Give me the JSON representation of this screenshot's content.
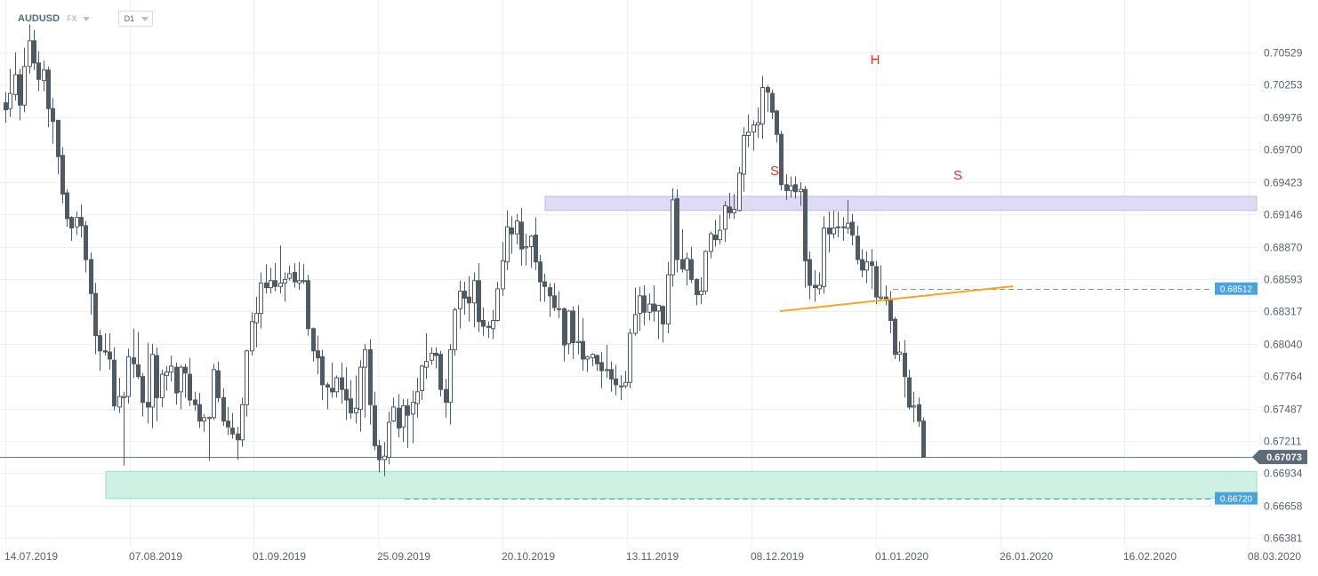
{
  "header": {
    "symbol": "AUDUSD",
    "market": "FX",
    "timeframe": "D1"
  },
  "chart_data": {
    "type": "candlestick",
    "symbol": "AUDUSD",
    "timeframe": "D1",
    "y_ticks": [
      "0.70529",
      "0.70253",
      "0.69976",
      "0.69700",
      "0.69423",
      "0.69146",
      "0.68870",
      "0.68593",
      "0.68317",
      "0.68040",
      "0.67764",
      "0.67487",
      "0.67211",
      "0.66934",
      "0.66658",
      "0.66381"
    ],
    "x_ticks": [
      "14.07.2019",
      "07.08.2019",
      "01.09.2019",
      "25.09.2019",
      "20.10.2019",
      "13.11.2019",
      "08.12.2019",
      "01.01.2020",
      "26.01.2020",
      "16.02.2020",
      "08.03.2020"
    ],
    "ylim": [
      0.6636,
      0.7072
    ],
    "current_price": {
      "label": "0.67073",
      "value": 0.67073
    },
    "price_labels": [
      {
        "label": "0.68512",
        "value": 0.68512
      },
      {
        "label": "0.66720",
        "value": 0.6672
      }
    ],
    "pattern": {
      "name": "head-and-shoulders",
      "labels": [
        "S",
        "H",
        "S"
      ]
    },
    "zones": [
      {
        "name": "resistance",
        "low": 0.6918,
        "high": 0.693,
        "color": "#dcd8f4"
      },
      {
        "name": "support",
        "low": 0.6672,
        "high": 0.6695,
        "color": "#c9f0e2"
      }
    ],
    "colors": {
      "bull": "#ffffff",
      "bear": "#4e5b65",
      "wick": "#4e5b65",
      "neckline": "#f5a623",
      "label": "#e03131",
      "price_tag": "#4aa3df",
      "current_tag": "#5d6b78"
    },
    "candles": [
      [
        0.701,
        0.7004,
        0.7019,
        0.6993
      ],
      [
        0.7005,
        0.7018,
        0.7039,
        0.6998
      ],
      [
        0.7017,
        0.7034,
        0.7053,
        0.7012
      ],
      [
        0.7034,
        0.7008,
        0.7039,
        0.6995
      ],
      [
        0.7008,
        0.7041,
        0.7057,
        0.7002
      ],
      [
        0.7041,
        0.7063,
        0.7077,
        0.7035
      ],
      [
        0.7063,
        0.7044,
        0.7072,
        0.7038
      ],
      [
        0.7044,
        0.703,
        0.7054,
        0.702
      ],
      [
        0.7029,
        0.7038,
        0.7046,
        0.702
      ],
      [
        0.7038,
        0.7005,
        0.7041,
        0.6989
      ],
      [
        0.7005,
        0.6994,
        0.7014,
        0.6975
      ],
      [
        0.6995,
        0.6964,
        0.6995,
        0.6949
      ],
      [
        0.6965,
        0.6932,
        0.6972,
        0.6924
      ],
      [
        0.6933,
        0.6911,
        0.6936,
        0.6904
      ],
      [
        0.6912,
        0.6903,
        0.6913,
        0.6892
      ],
      [
        0.6904,
        0.6912,
        0.6917,
        0.6897
      ],
      [
        0.6912,
        0.6905,
        0.6923,
        0.6895
      ],
      [
        0.6905,
        0.6876,
        0.6909,
        0.6865
      ],
      [
        0.6876,
        0.6847,
        0.6882,
        0.6829
      ],
      [
        0.6847,
        0.6811,
        0.6856,
        0.6795
      ],
      [
        0.6811,
        0.6798,
        0.6816,
        0.6781
      ],
      [
        0.6798,
        0.6797,
        0.6813,
        0.6794
      ],
      [
        0.6797,
        0.6791,
        0.6813,
        0.6782
      ],
      [
        0.679,
        0.6751,
        0.6801,
        0.6747
      ],
      [
        0.675,
        0.6759,
        0.6775,
        0.6745
      ],
      [
        0.6758,
        0.6759,
        0.6763,
        0.67
      ],
      [
        0.6759,
        0.6793,
        0.68,
        0.6753
      ],
      [
        0.6792,
        0.6787,
        0.6817,
        0.6775
      ],
      [
        0.6786,
        0.6776,
        0.6814,
        0.6774
      ],
      [
        0.6776,
        0.6754,
        0.6779,
        0.6742
      ],
      [
        0.6754,
        0.675,
        0.6805,
        0.6736
      ],
      [
        0.675,
        0.6795,
        0.6804,
        0.6732
      ],
      [
        0.6794,
        0.6758,
        0.6801,
        0.6738
      ],
      [
        0.6758,
        0.6778,
        0.6782,
        0.675
      ],
      [
        0.6777,
        0.678,
        0.6785,
        0.6764
      ],
      [
        0.678,
        0.6785,
        0.6794,
        0.6772
      ],
      [
        0.6784,
        0.6762,
        0.6788,
        0.6752
      ],
      [
        0.6763,
        0.6784,
        0.6786,
        0.6748
      ],
      [
        0.6784,
        0.6779,
        0.6787,
        0.6758
      ],
      [
        0.6778,
        0.6756,
        0.6792,
        0.6751
      ],
      [
        0.6756,
        0.6752,
        0.6763,
        0.6747
      ],
      [
        0.6752,
        0.6738,
        0.6762,
        0.6732
      ],
      [
        0.6738,
        0.6741,
        0.6744,
        0.6729
      ],
      [
        0.6741,
        0.6741,
        0.6742,
        0.6704
      ],
      [
        0.6741,
        0.6782,
        0.6787,
        0.6739
      ],
      [
        0.6781,
        0.6758,
        0.6789,
        0.6754
      ],
      [
        0.6758,
        0.6738,
        0.6766,
        0.6734
      ],
      [
        0.6738,
        0.6733,
        0.675,
        0.6726
      ],
      [
        0.6732,
        0.6727,
        0.6745,
        0.6723
      ],
      [
        0.6727,
        0.6722,
        0.6733,
        0.6705
      ],
      [
        0.6722,
        0.6752,
        0.6758,
        0.6716
      ],
      [
        0.6752,
        0.6798,
        0.6799,
        0.6742
      ],
      [
        0.6798,
        0.6823,
        0.6831,
        0.6794
      ],
      [
        0.6822,
        0.683,
        0.6844,
        0.6801
      ],
      [
        0.683,
        0.6856,
        0.6865,
        0.6817
      ],
      [
        0.6856,
        0.6852,
        0.6872,
        0.6847
      ],
      [
        0.6852,
        0.6858,
        0.6869,
        0.6847
      ],
      [
        0.6858,
        0.6853,
        0.6873,
        0.6849
      ],
      [
        0.6853,
        0.6856,
        0.6888,
        0.6847
      ],
      [
        0.6856,
        0.6859,
        0.6865,
        0.684
      ],
      [
        0.686,
        0.6864,
        0.6871,
        0.6858
      ],
      [
        0.6865,
        0.6857,
        0.6873,
        0.6852
      ],
      [
        0.6856,
        0.6858,
        0.6874,
        0.685
      ],
      [
        0.6858,
        0.6858,
        0.6872,
        0.6855
      ],
      [
        0.6858,
        0.6817,
        0.6863,
        0.6811
      ],
      [
        0.6817,
        0.6798,
        0.6818,
        0.6789
      ],
      [
        0.6798,
        0.6792,
        0.6811,
        0.6778
      ],
      [
        0.6793,
        0.6769,
        0.6799,
        0.6756
      ],
      [
        0.6769,
        0.6767,
        0.6771,
        0.6748
      ],
      [
        0.6766,
        0.6763,
        0.6788,
        0.6758
      ],
      [
        0.6763,
        0.6775,
        0.6777,
        0.6758
      ],
      [
        0.6775,
        0.6765,
        0.6788,
        0.6753
      ],
      [
        0.6765,
        0.6756,
        0.6784,
        0.6739
      ],
      [
        0.6757,
        0.6745,
        0.6773,
        0.674
      ],
      [
        0.6745,
        0.6749,
        0.6777,
        0.6736
      ],
      [
        0.6748,
        0.6784,
        0.679,
        0.6729
      ],
      [
        0.6784,
        0.6799,
        0.6804,
        0.6741
      ],
      [
        0.6799,
        0.6752,
        0.6808,
        0.6735
      ],
      [
        0.6751,
        0.6717,
        0.6763,
        0.6713
      ],
      [
        0.6717,
        0.6705,
        0.6722,
        0.6694
      ],
      [
        0.6705,
        0.6708,
        0.672,
        0.6691
      ],
      [
        0.6707,
        0.6737,
        0.6746,
        0.6701
      ],
      [
        0.6738,
        0.675,
        0.6758,
        0.6737
      ],
      [
        0.6749,
        0.6732,
        0.6761,
        0.6724
      ],
      [
        0.6733,
        0.6751,
        0.6757,
        0.672
      ],
      [
        0.6751,
        0.6743,
        0.6757,
        0.6715
      ],
      [
        0.6744,
        0.6754,
        0.6764,
        0.6719
      ],
      [
        0.6753,
        0.6763,
        0.6775,
        0.6741
      ],
      [
        0.6764,
        0.6785,
        0.6786,
        0.6756
      ],
      [
        0.6784,
        0.6789,
        0.6813,
        0.6774
      ],
      [
        0.679,
        0.6796,
        0.6801,
        0.6786
      ],
      [
        0.6796,
        0.6794,
        0.6801,
        0.6783
      ],
      [
        0.6795,
        0.6765,
        0.6798,
        0.6759
      ],
      [
        0.6765,
        0.6754,
        0.6774,
        0.6741
      ],
      [
        0.6754,
        0.6799,
        0.6804,
        0.6735
      ],
      [
        0.6799,
        0.6833,
        0.6835,
        0.6794
      ],
      [
        0.6834,
        0.6849,
        0.6858,
        0.6817
      ],
      [
        0.6849,
        0.6843,
        0.6857,
        0.6829
      ],
      [
        0.6844,
        0.6839,
        0.6862,
        0.6823
      ],
      [
        0.6839,
        0.6858,
        0.6865,
        0.6818
      ],
      [
        0.6858,
        0.6823,
        0.6873,
        0.6814
      ],
      [
        0.6824,
        0.6819,
        0.6835,
        0.6811
      ],
      [
        0.6819,
        0.6818,
        0.6823,
        0.6809
      ],
      [
        0.6817,
        0.6824,
        0.6833,
        0.6808
      ],
      [
        0.6824,
        0.6851,
        0.6857,
        0.6823
      ],
      [
        0.6851,
        0.6875,
        0.6891,
        0.6845
      ],
      [
        0.6874,
        0.6904,
        0.6918,
        0.6867
      ],
      [
        0.6903,
        0.6898,
        0.6913,
        0.6881
      ],
      [
        0.6898,
        0.6909,
        0.6915,
        0.6889
      ],
      [
        0.6908,
        0.6885,
        0.692,
        0.6871
      ],
      [
        0.6886,
        0.6887,
        0.6898,
        0.6871
      ],
      [
        0.6887,
        0.6896,
        0.6897,
        0.6869
      ],
      [
        0.6897,
        0.6874,
        0.6912,
        0.6867
      ],
      [
        0.6874,
        0.6857,
        0.688,
        0.684
      ],
      [
        0.6857,
        0.6853,
        0.6864,
        0.684
      ],
      [
        0.6852,
        0.6845,
        0.6856,
        0.6827
      ],
      [
        0.6845,
        0.6835,
        0.6856,
        0.6832
      ],
      [
        0.6834,
        0.6834,
        0.6849,
        0.6826
      ],
      [
        0.6834,
        0.6803,
        0.6835,
        0.6789
      ],
      [
        0.6804,
        0.6832,
        0.6833,
        0.6795
      ],
      [
        0.6832,
        0.6805,
        0.6836,
        0.6791
      ],
      [
        0.6805,
        0.6806,
        0.6837,
        0.6795
      ],
      [
        0.6806,
        0.6791,
        0.6826,
        0.6781
      ],
      [
        0.6791,
        0.6793,
        0.6794,
        0.678
      ],
      [
        0.6792,
        0.6795,
        0.6796,
        0.6785
      ],
      [
        0.6794,
        0.6787,
        0.6795,
        0.6781
      ],
      [
        0.6788,
        0.6781,
        0.6797,
        0.6766
      ],
      [
        0.6782,
        0.6782,
        0.6803,
        0.6775
      ],
      [
        0.6782,
        0.6774,
        0.6789,
        0.6763
      ],
      [
        0.6774,
        0.6769,
        0.6786,
        0.676
      ],
      [
        0.6768,
        0.6768,
        0.6777,
        0.6756
      ],
      [
        0.6768,
        0.6771,
        0.6781,
        0.6766
      ],
      [
        0.6771,
        0.6813,
        0.6817,
        0.6766
      ],
      [
        0.6813,
        0.6829,
        0.6852,
        0.6811
      ],
      [
        0.683,
        0.6845,
        0.6853,
        0.6815
      ],
      [
        0.6845,
        0.6831,
        0.6854,
        0.682
      ],
      [
        0.6831,
        0.6838,
        0.6847,
        0.6824
      ],
      [
        0.6838,
        0.6832,
        0.6854,
        0.6823
      ],
      [
        0.6832,
        0.6837,
        0.6837,
        0.6808
      ],
      [
        0.6836,
        0.6821,
        0.6837,
        0.6805
      ],
      [
        0.6821,
        0.6863,
        0.6874,
        0.6813
      ],
      [
        0.6863,
        0.6927,
        0.6937,
        0.6853
      ],
      [
        0.6928,
        0.6876,
        0.6936,
        0.6865
      ],
      [
        0.6876,
        0.6868,
        0.6902,
        0.6865
      ],
      [
        0.6867,
        0.6877,
        0.6882,
        0.6854
      ],
      [
        0.6876,
        0.6859,
        0.6887,
        0.6856
      ],
      [
        0.6859,
        0.6846,
        0.686,
        0.6837
      ],
      [
        0.6846,
        0.6849,
        0.6861,
        0.6838
      ],
      [
        0.6849,
        0.6883,
        0.6884,
        0.6846
      ],
      [
        0.6883,
        0.6898,
        0.69,
        0.6877
      ],
      [
        0.6897,
        0.6893,
        0.691,
        0.6887
      ],
      [
        0.6893,
        0.6901,
        0.6914,
        0.6889
      ],
      [
        0.6902,
        0.6922,
        0.6926,
        0.6891
      ],
      [
        0.6921,
        0.6916,
        0.6933,
        0.6911
      ],
      [
        0.6916,
        0.6919,
        0.6932,
        0.6911
      ],
      [
        0.6918,
        0.695,
        0.6955,
        0.6917
      ],
      [
        0.6949,
        0.6982,
        0.6989,
        0.6934
      ],
      [
        0.6982,
        0.6985,
        0.7,
        0.6972
      ],
      [
        0.6985,
        0.6991,
        0.6995,
        0.6969
      ],
      [
        0.6991,
        0.6993,
        0.7006,
        0.698
      ],
      [
        0.6992,
        0.7023,
        0.7033,
        0.6979
      ],
      [
        0.7023,
        0.7019,
        0.7025,
        0.7002
      ],
      [
        0.7018,
        0.7002,
        0.7021,
        0.6996
      ],
      [
        0.7003,
        0.6983,
        0.7004,
        0.6976
      ],
      [
        0.6983,
        0.694,
        0.6986,
        0.6935
      ],
      [
        0.694,
        0.6935,
        0.6949,
        0.6927
      ],
      [
        0.6935,
        0.6939,
        0.6947,
        0.6929
      ],
      [
        0.694,
        0.6934,
        0.6947,
        0.6928
      ],
      [
        0.6934,
        0.6936,
        0.6942,
        0.6922
      ],
      [
        0.6936,
        0.6875,
        0.6939,
        0.6852
      ],
      [
        0.6876,
        0.6854,
        0.6883,
        0.6842
      ],
      [
        0.6854,
        0.6852,
        0.6867,
        0.684
      ],
      [
        0.6851,
        0.6854,
        0.6865,
        0.6846
      ],
      [
        0.6853,
        0.6903,
        0.6913,
        0.6847
      ],
      [
        0.6903,
        0.6898,
        0.6917,
        0.6882
      ],
      [
        0.6898,
        0.6903,
        0.6918,
        0.6894
      ],
      [
        0.6904,
        0.6904,
        0.6917,
        0.6895
      ],
      [
        0.6904,
        0.6904,
        0.6912,
        0.6892
      ],
      [
        0.6903,
        0.6907,
        0.6927,
        0.6898
      ],
      [
        0.6908,
        0.6897,
        0.6915,
        0.6888
      ],
      [
        0.6896,
        0.6876,
        0.6905,
        0.6872
      ],
      [
        0.6876,
        0.6867,
        0.6885,
        0.6861
      ],
      [
        0.6867,
        0.6874,
        0.6883,
        0.6856
      ],
      [
        0.6874,
        0.6871,
        0.6885,
        0.6851
      ],
      [
        0.687,
        0.6844,
        0.6875,
        0.6838
      ],
      [
        0.6843,
        0.6844,
        0.6871,
        0.6841
      ],
      [
        0.6844,
        0.6841,
        0.6854,
        0.6837
      ],
      [
        0.6841,
        0.6824,
        0.6849,
        0.6813
      ],
      [
        0.6825,
        0.6795,
        0.6827,
        0.6791
      ],
      [
        0.6795,
        0.6797,
        0.6806,
        0.6789
      ],
      [
        0.6796,
        0.6776,
        0.6807,
        0.6758
      ],
      [
        0.6775,
        0.675,
        0.6782,
        0.6748
      ],
      [
        0.675,
        0.6751,
        0.6763,
        0.6737
      ],
      [
        0.6752,
        0.6738,
        0.6758,
        0.6733
      ],
      [
        0.6738,
        0.6707,
        0.6741,
        0.6707
      ]
    ]
  }
}
